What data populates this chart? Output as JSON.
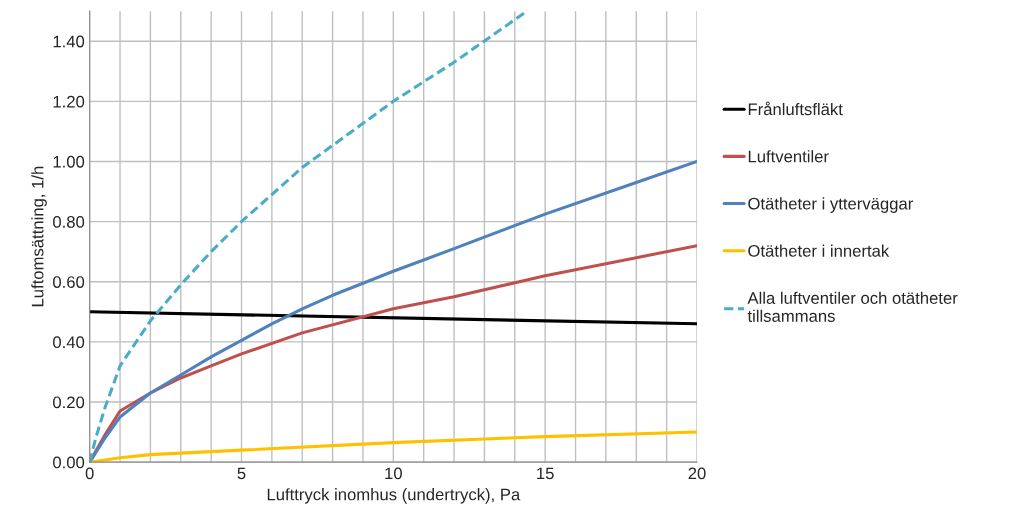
{
  "chart_data": {
    "type": "line",
    "xlabel": "Lufttryck inomhus (undertryck), Pa",
    "ylabel": "Luftomsättning, 1/h",
    "xlim": [
      0,
      20
    ],
    "ylim": [
      0,
      1.5
    ],
    "xticks": [
      0,
      {
        "value": 1,
        "label": null
      },
      {
        "value": 2,
        "label": null
      },
      {
        "value": 3,
        "label": null
      },
      {
        "value": 4,
        "label": null
      },
      5,
      {
        "value": 6,
        "label": null
      },
      {
        "value": 7,
        "label": null
      },
      {
        "value": 8,
        "label": null
      },
      {
        "value": 9,
        "label": null
      },
      10,
      {
        "value": 11,
        "label": null
      },
      {
        "value": 12,
        "label": null
      },
      {
        "value": 13,
        "label": null
      },
      {
        "value": 14,
        "label": null
      },
      15,
      {
        "value": 16,
        "label": null
      },
      {
        "value": 17,
        "label": null
      },
      {
        "value": 18,
        "label": null
      },
      {
        "value": 19,
        "label": null
      },
      20
    ],
    "yticks": [
      {
        "value": 0,
        "label": "0.00"
      },
      {
        "value": 0.2,
        "label": "0.20"
      },
      {
        "value": 0.4,
        "label": "0.40"
      },
      {
        "value": 0.6,
        "label": "0.60"
      },
      {
        "value": 0.8,
        "label": "0.80"
      },
      {
        "value": 1.0,
        "label": "1.00"
      },
      {
        "value": 1.2,
        "label": "1.20"
      },
      {
        "value": 1.4,
        "label": "1.40"
      }
    ],
    "grid": true,
    "legend": "right",
    "marker": "none",
    "series": [
      {
        "name": "Frånluftsfläkt",
        "color": "#000000",
        "x": [
          0,
          20
        ],
        "values": [
          0.5,
          0.46
        ]
      },
      {
        "name": "Luftventiler",
        "color": "#c0504d",
        "x": [
          0,
          0.5,
          1,
          1.5,
          2,
          3,
          4,
          5,
          7,
          10,
          12,
          15,
          18,
          20
        ],
        "values": [
          0,
          0.09,
          0.17,
          0.2,
          0.23,
          0.28,
          0.32,
          0.36,
          0.43,
          0.51,
          0.55,
          0.62,
          0.68,
          0.72
        ]
      },
      {
        "name": "Otätheter i ytterväggar",
        "color": "#4f81bd",
        "x": [
          0,
          0.5,
          1,
          2,
          3,
          4,
          5,
          6,
          7,
          8,
          10,
          12,
          15,
          18,
          20
        ],
        "values": [
          0,
          0.08,
          0.15,
          0.23,
          0.29,
          0.35,
          0.405,
          0.46,
          0.51,
          0.555,
          0.635,
          0.71,
          0.825,
          0.93,
          1.0
        ]
      },
      {
        "name": "Otätheter i innertak",
        "color": "#ffc000",
        "x": [
          0,
          1,
          2,
          5,
          10,
          15,
          20
        ],
        "values": [
          0,
          0.015,
          0.025,
          0.04,
          0.065,
          0.085,
          0.1
        ]
      },
      {
        "name": "Alla luftventiler och otätheter\ntillsammans",
        "color": "#4bacc6",
        "line_style": "dashed",
        "x": [
          0,
          0.2,
          0.5,
          1,
          2,
          3,
          4,
          5,
          7,
          10,
          12,
          14.4
        ],
        "values": [
          0,
          0.08,
          0.18,
          0.32,
          0.47,
          0.59,
          0.7,
          0.8,
          0.98,
          1.2,
          1.33,
          1.5
        ]
      }
    ]
  }
}
